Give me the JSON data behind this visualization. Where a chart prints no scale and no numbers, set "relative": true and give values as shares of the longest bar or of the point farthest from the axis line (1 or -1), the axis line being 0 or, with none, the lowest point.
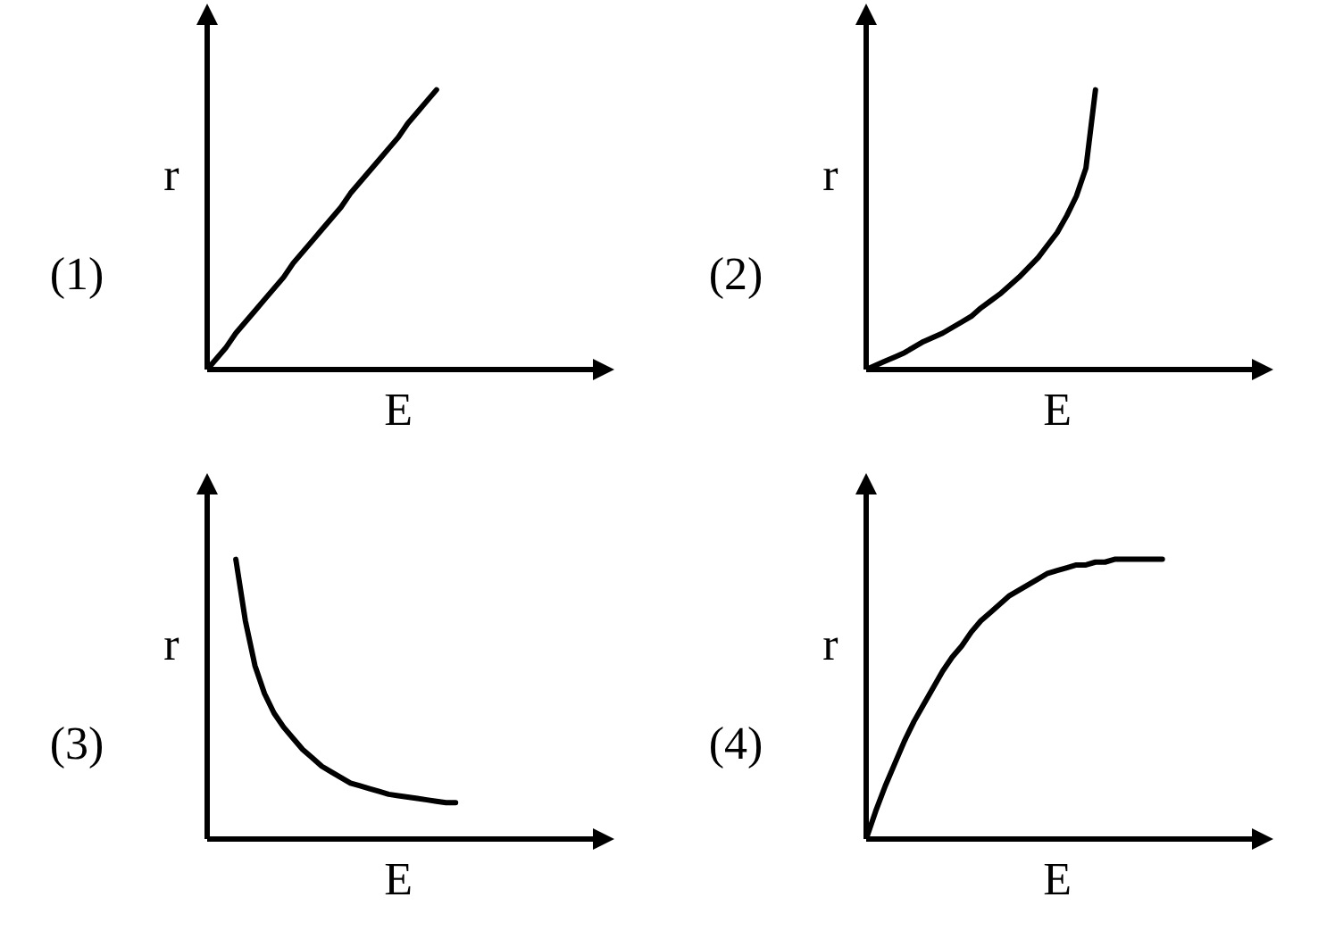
{
  "chart_data": [
    {
      "type": "line",
      "title": "(1)",
      "xlabel": "E",
      "ylabel": "r",
      "relative": true,
      "color": "#000000",
      "categories": [
        null,
        null,
        null,
        null,
        null,
        null,
        null,
        null,
        null,
        null,
        null,
        null,
        null,
        null,
        null,
        null,
        null,
        null,
        null,
        null,
        null,
        null,
        null,
        null,
        null,
        null,
        null,
        null,
        null,
        null,
        null,
        null,
        null,
        null,
        null,
        null,
        null,
        null,
        null,
        null,
        null
      ],
      "values": [
        0,
        0.04,
        0.08,
        0.13,
        0.17,
        0.21,
        0.25,
        0.29,
        0.33,
        0.38,
        0.42,
        0.46,
        0.5,
        0.54,
        0.58,
        0.63,
        0.67,
        0.71,
        0.75,
        0.79,
        0.83,
        0.88,
        0.92,
        0.96,
        1,
        null,
        null,
        null,
        null,
        null,
        null,
        null,
        null,
        null,
        null,
        null,
        null,
        null,
        null,
        null,
        null
      ]
    },
    {
      "type": "line",
      "title": "(2)",
      "xlabel": "E",
      "ylabel": "r",
      "relative": true,
      "color": "#000000",
      "categories": [
        null,
        null,
        null,
        null,
        null,
        null,
        null,
        null,
        null,
        null,
        null,
        null,
        null,
        null,
        null,
        null,
        null,
        null,
        null,
        null,
        null,
        null,
        null,
        null,
        null,
        null,
        null,
        null,
        null,
        null,
        null,
        null,
        null,
        null,
        null,
        null,
        null,
        null,
        null,
        null,
        null
      ],
      "values": [
        0,
        0.015,
        0.03,
        0.045,
        0.06,
        0.08,
        0.1,
        0.115,
        0.13,
        0.15,
        0.17,
        0.19,
        0.22,
        0.245,
        0.27,
        0.3,
        0.33,
        0.365,
        0.4,
        0.445,
        0.49,
        0.55,
        0.62,
        0.72,
        1,
        null,
        null,
        null,
        null,
        null,
        null,
        null,
        null,
        null,
        null,
        null,
        null,
        null,
        null,
        null,
        null
      ]
    },
    {
      "type": "line",
      "title": "(3)",
      "xlabel": "E",
      "ylabel": "r",
      "relative": true,
      "color": "#000000",
      "categories": [
        null,
        null,
        null,
        null,
        null,
        null,
        null,
        null,
        null,
        null,
        null,
        null,
        null,
        null,
        null,
        null,
        null,
        null,
        null,
        null,
        null,
        null,
        null,
        null,
        null,
        null,
        null,
        null,
        null,
        null,
        null,
        null,
        null,
        null,
        null,
        null,
        null,
        null,
        null,
        null,
        null
      ],
      "values": [
        null,
        null,
        null,
        1,
        0.78,
        0.62,
        0.52,
        0.45,
        0.4,
        0.36,
        0.32,
        0.29,
        0.26,
        0.24,
        0.22,
        0.2,
        0.19,
        0.18,
        0.17,
        0.16,
        0.155,
        0.15,
        0.145,
        0.14,
        0.135,
        0.13,
        0.13,
        null,
        null,
        null,
        null,
        null,
        null,
        null,
        null,
        null,
        null,
        null,
        null,
        null,
        null
      ]
    },
    {
      "type": "line",
      "title": "(4)",
      "xlabel": "E",
      "ylabel": "r",
      "relative": true,
      "color": "#000000",
      "categories": [
        null,
        null,
        null,
        null,
        null,
        null,
        null,
        null,
        null,
        null,
        null,
        null,
        null,
        null,
        null,
        null,
        null,
        null,
        null,
        null,
        null,
        null,
        null,
        null,
        null,
        null,
        null,
        null,
        null,
        null,
        null,
        null,
        null,
        null,
        null,
        null,
        null,
        null,
        null,
        null,
        null
      ],
      "values": [
        0,
        0.1,
        0.19,
        0.27,
        0.35,
        0.42,
        0.48,
        0.54,
        0.6,
        0.65,
        0.69,
        0.74,
        0.78,
        0.81,
        0.84,
        0.87,
        0.89,
        0.91,
        0.93,
        0.95,
        0.96,
        0.97,
        0.98,
        0.98,
        0.99,
        0.99,
        1,
        1,
        1,
        1,
        1,
        1,
        null,
        null,
        null,
        null,
        null,
        null,
        null,
        null,
        null
      ]
    }
  ]
}
